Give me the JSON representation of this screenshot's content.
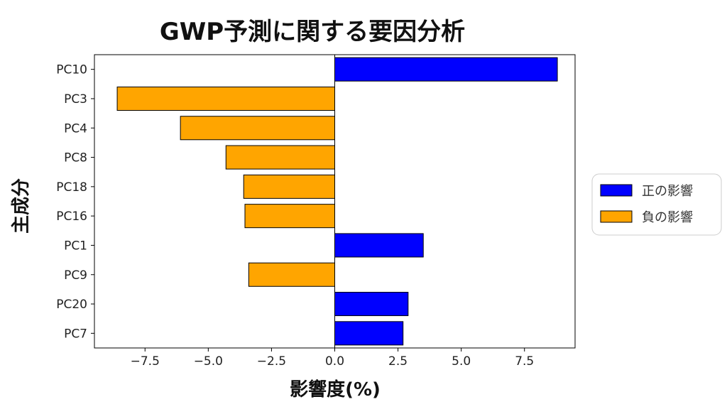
{
  "chart_data": {
    "type": "bar",
    "orientation": "horizontal",
    "title": "GWP予測に関する要因分析",
    "xlabel": "影響度(%)",
    "ylabel": "主成分",
    "xlim": [
      -9.5,
      9.5
    ],
    "xticks": [
      -7.5,
      -5.0,
      -2.5,
      0.0,
      2.5,
      5.0,
      7.5
    ],
    "xtick_labels": [
      "−7.5",
      "−5.0",
      "−2.5",
      "0.0",
      "2.5",
      "5.0",
      "7.5"
    ],
    "categories": [
      "PC10",
      "PC3",
      "PC4",
      "PC8",
      "PC18",
      "PC16",
      "PC1",
      "PC9",
      "PC20",
      "PC7"
    ],
    "values": [
      8.8,
      -8.6,
      -6.1,
      -4.3,
      -3.6,
      -3.55,
      3.5,
      -3.4,
      2.9,
      2.7
    ],
    "grid": false,
    "legend_position": "right",
    "legend": [
      {
        "label": "正の影響",
        "color": "#0000ff"
      },
      {
        "label": "負の影響",
        "color": "#ffa500"
      }
    ],
    "colors": {
      "positive": "#0000ff",
      "negative": "#ffa500",
      "edge": "#000000"
    }
  }
}
